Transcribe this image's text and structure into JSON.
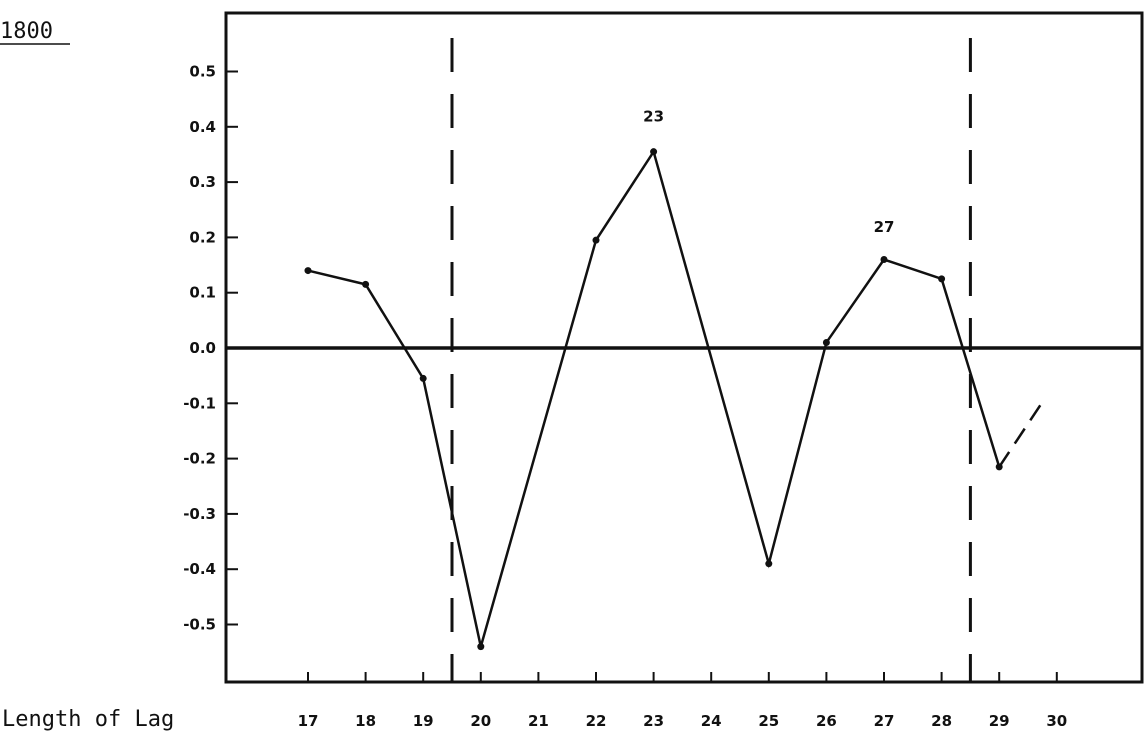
{
  "chart_data": {
    "type": "line",
    "title": "1800",
    "xlabel": "Length of Lag",
    "ylabel": "",
    "x": [
      17,
      18,
      19,
      20,
      21,
      22,
      23,
      24,
      25,
      26,
      27,
      28,
      29,
      30
    ],
    "x_tick_labels": [
      "17",
      "18",
      "19",
      "20",
      "21",
      "22",
      "23",
      "24",
      "25",
      "26",
      "27",
      "28",
      "29",
      "30"
    ],
    "y_ticks": [
      0.5,
      0.4,
      0.3,
      0.2,
      0.1,
      0.0,
      -0.1,
      -0.2,
      -0.3,
      -0.4,
      -0.5
    ],
    "y_tick_labels": [
      "0.5",
      "0.4",
      "0.3",
      "0.2",
      "0.1",
      "0.0",
      "-0.1",
      "-0.2",
      "-0.3",
      "-0.4",
      "-0.5"
    ],
    "xlim": [
      13.2,
      32.5
    ],
    "ylim": [
      -0.6,
      0.6
    ],
    "series": [
      {
        "x": [
          17,
          18,
          19,
          20,
          22,
          23,
          25,
          26,
          27,
          28,
          29
        ],
        "values": [
          0.14,
          0.115,
          -0.055,
          -0.54,
          0.195,
          0.355,
          -0.39,
          0.01,
          0.16,
          0.125,
          -0.215
        ]
      }
    ],
    "dashed_extension": {
      "from": [
        29,
        -0.215
      ],
      "to": [
        29.8,
        -0.09
      ]
    },
    "reference_lines": {
      "horizontal_zero": 0.0,
      "vertical_dashed": [
        19.5,
        28.5
      ]
    },
    "annotations": [
      {
        "text": "23",
        "x": 23,
        "y": 0.41
      },
      {
        "text": "27",
        "x": 27,
        "y": 0.21
      }
    ],
    "grid": false,
    "legend": "none",
    "colors": {
      "line": "#111111",
      "background": "#ffffff"
    }
  }
}
